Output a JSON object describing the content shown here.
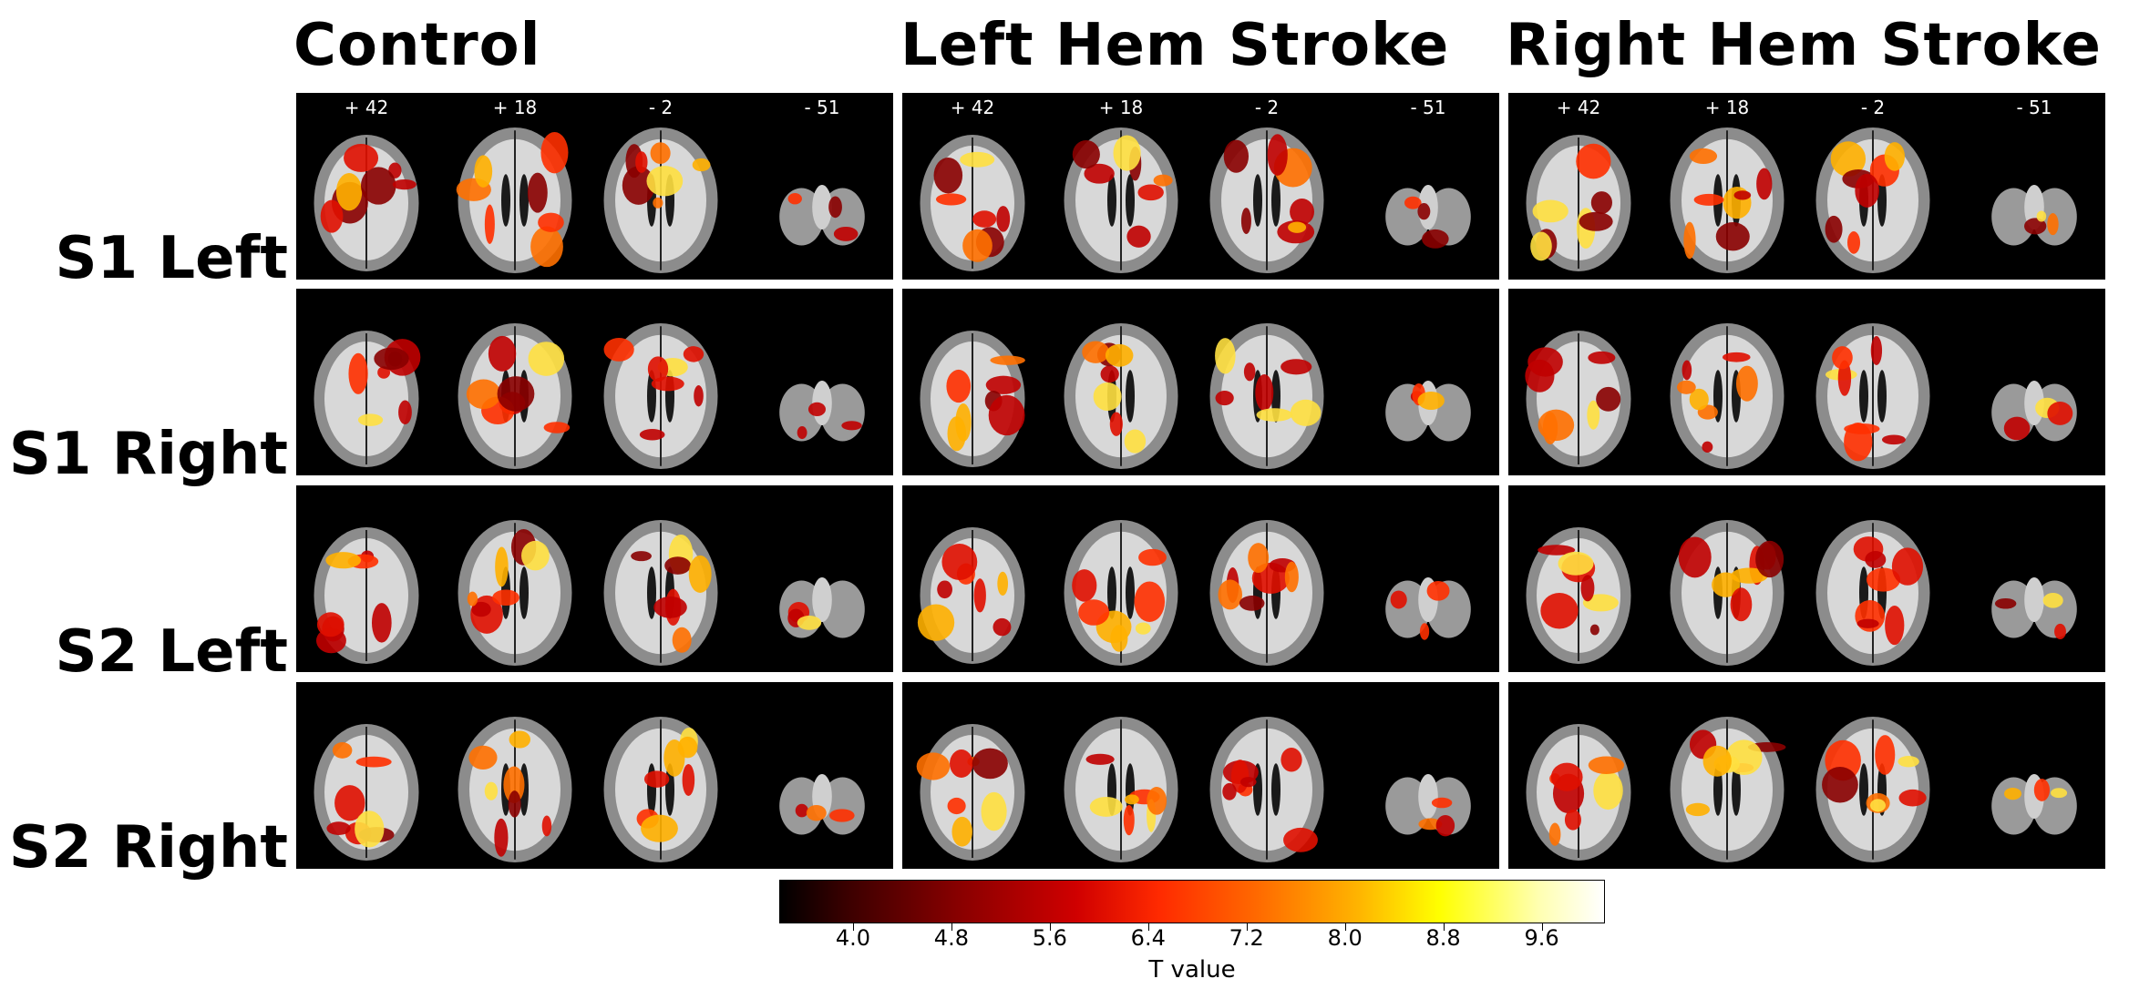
{
  "columns": [
    "Control",
    "Left Hem Stroke",
    "Right Hem Stroke"
  ],
  "rows": [
    "S1 Left",
    "S1 Right",
    "S2 Left",
    "S2 Right"
  ],
  "slices": [
    "+ 42",
    "+ 18",
    "- 2",
    "- 51"
  ],
  "colorbar": {
    "label": "T value",
    "ticks": [
      "4.0",
      "4.8",
      "5.6",
      "6.4",
      "7.2",
      "8.0",
      "8.8",
      "9.6"
    ],
    "colors": [
      "#000000",
      "#8a0000",
      "#ff2a00",
      "#ff6a00",
      "#ffff00",
      "#ffffff"
    ]
  }
}
